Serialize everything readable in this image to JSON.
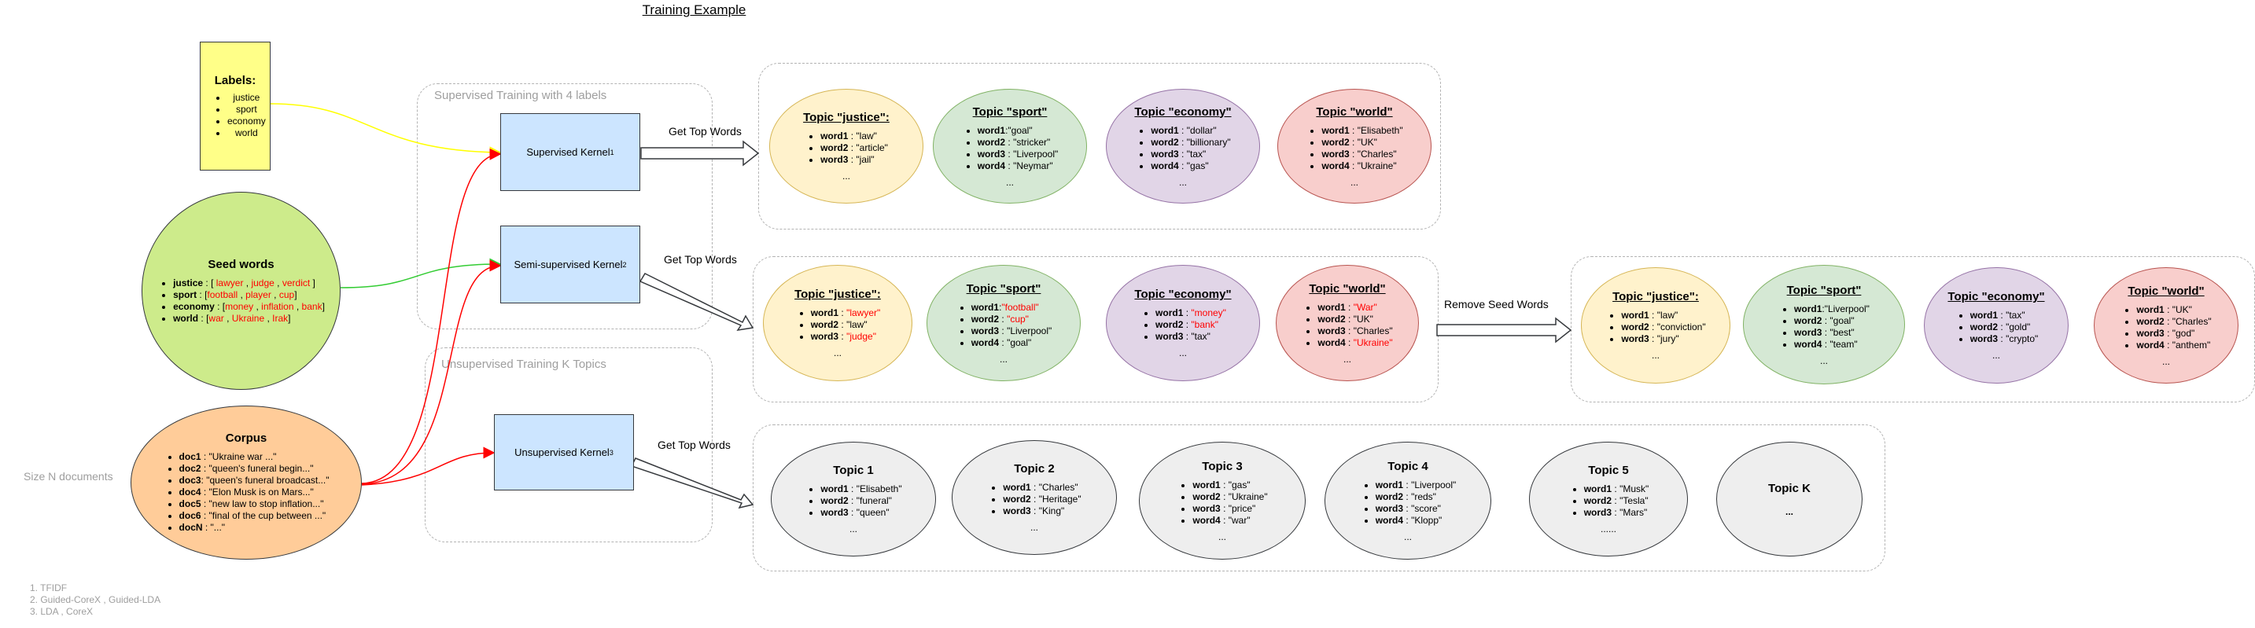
{
  "title": "Training Example",
  "labels_box": {
    "heading": "Labels:",
    "items": [
      "justice",
      "sport",
      "economy",
      "world"
    ]
  },
  "seed_words": {
    "heading": "Seed words",
    "rows": [
      {
        "key": "justice",
        "pre": " : [ ",
        "words": [
          "lawyer",
          "judge",
          "verdict"
        ],
        "post": " ]"
      },
      {
        "key": "sport",
        "pre": " : [",
        "words": [
          "football",
          "player",
          "cup"
        ],
        "post": "]"
      },
      {
        "key": "economy",
        "pre": " : [",
        "words": [
          "money",
          "inflation",
          "bank"
        ],
        "post": "]"
      },
      {
        "key": "world",
        "pre": " : [",
        "words": [
          "war",
          "Ukraine",
          "Irak"
        ],
        "post": "]"
      }
    ]
  },
  "corpus": {
    "heading": "Corpus",
    "rows": [
      {
        "key": "doc1",
        "text": " : \"Ukraine war ...\""
      },
      {
        "key": "doc2",
        "text": " : \"queen's funeral begin...\""
      },
      {
        "key": "doc3",
        "text": ": \"queen's funeral broadcast...\""
      },
      {
        "key": "doc4",
        "text": " : \"Elon Musk is on Mars...\""
      },
      {
        "key": "doc5",
        "text": " : \"new law to stop inflation...\""
      },
      {
        "key": "doc6",
        "text": " : \"final of the cup between ...\""
      },
      {
        "key": "docN",
        "text": " : \"...\""
      }
    ]
  },
  "size_label": "Size N documents",
  "groups": {
    "supervised": "Supervised Training with 4 labels",
    "unsupervised": "Unsupervised Training K Topics"
  },
  "kernels": {
    "supervised": {
      "label": "Supervised Kernel",
      "sup": "1"
    },
    "semi": {
      "label": "Semi-supervised Kernel ",
      "sup": "2"
    },
    "unsupervised": {
      "label": "Unsupervised Kernel ",
      "sup": "3"
    }
  },
  "edge_labels": {
    "top1": "Get Top Words",
    "top2": "Get Top Words",
    "top3": "Get Top Words",
    "remove": "Remove Seed Words"
  },
  "colors": {
    "yellow_fill": "#fff2cc",
    "green_fill": "#d5e8d4",
    "purple_fill": "#e1d5e7",
    "red_fill": "#f8cecc",
    "yellow_wire": "#ffff00",
    "green_wire": "#33cc33",
    "red_wire": "#ff0000"
  },
  "supervised_topics": [
    {
      "title": "Topic \"justice\":",
      "color": "yellow",
      "words": [
        {
          "k": "word1",
          "v": " : \"law\""
        },
        {
          "k": "word2",
          "v": " : \"article\""
        },
        {
          "k": "word3",
          "v": " : \"jail\""
        }
      ],
      "dots": "..."
    },
    {
      "title": "Topic \"sport\"",
      "color": "green",
      "words": [
        {
          "k": "word1",
          "v": ":\"goal\""
        },
        {
          "k": "word2",
          "v": " : \"stricker\""
        },
        {
          "k": "word3",
          "v": " : \"Liverpool\""
        },
        {
          "k": "word4",
          "v": " : \"Neymar\""
        }
      ],
      "dots": "..."
    },
    {
      "title": "Topic \"economy\"",
      "color": "purple",
      "words": [
        {
          "k": "word1",
          "v": " : \"dollar\""
        },
        {
          "k": "word2",
          "v": " : \"billionary\""
        },
        {
          "k": "word3",
          "v": " : \"tax\""
        },
        {
          "k": "word4",
          "v": " : \"gas\""
        }
      ],
      "dots": "..."
    },
    {
      "title": "Topic \"world\"",
      "color": "red",
      "words": [
        {
          "k": "word1",
          "v": " : \"Elisabeth\""
        },
        {
          "k": "word2",
          "v": " : \"UK\""
        },
        {
          "k": "word3",
          "v": " : \"Charles\""
        },
        {
          "k": "word4",
          "v": " : \"Ukraine\""
        }
      ],
      "dots": "..."
    }
  ],
  "semi_topics": [
    {
      "title": "Topic \"justice\":",
      "color": "yellow",
      "words": [
        {
          "k": "word1",
          "v": " : ",
          "r": "\"lawyer\""
        },
        {
          "k": "word2",
          "v": " : \"law\""
        },
        {
          "k": "word3",
          "v": " : ",
          "r": "\"judge\""
        }
      ],
      "dots": "..."
    },
    {
      "title": "Topic \"sport\"",
      "color": "green",
      "words": [
        {
          "k": "word1",
          "v": ":",
          "r": "\"football\""
        },
        {
          "k": "word2",
          "v": " : ",
          "r": "\"cup\""
        },
        {
          "k": "word3",
          "v": " : \"Liverpool\""
        },
        {
          "k": "word4",
          "v": " : \"goal\""
        }
      ],
      "dots": "..."
    },
    {
      "title": "Topic \"economy\"",
      "color": "purple",
      "words": [
        {
          "k": "word1",
          "v": " : ",
          "r": "\"money\""
        },
        {
          "k": "word2",
          "v": " : ",
          "r": "\"bank\""
        },
        {
          "k": "word3",
          "v": " : \"tax\""
        }
      ],
      "dots": "..."
    },
    {
      "title": "Topic \"world\"",
      "color": "red",
      "words": [
        {
          "k": "word1",
          "v": " : ",
          "r": "\"War\""
        },
        {
          "k": "word2",
          "v": " : \"UK\""
        },
        {
          "k": "word3",
          "v": " : \"Charles\""
        },
        {
          "k": "word4",
          "v": " : ",
          "r": "\"Ukraine\""
        }
      ],
      "dots": "..."
    }
  ],
  "final_topics": [
    {
      "title": "Topic \"justice\":",
      "color": "yellow",
      "words": [
        {
          "k": "word1",
          "v": " : \"law\""
        },
        {
          "k": "word2",
          "v": " : \"conviction\""
        },
        {
          "k": "word3",
          "v": " : \"jury\""
        }
      ],
      "dots": "..."
    },
    {
      "title": "Topic \"sport\"",
      "color": "green",
      "words": [
        {
          "k": "word1",
          "v": ":\"Liverpool\""
        },
        {
          "k": "word2",
          "v": " : \"goal\""
        },
        {
          "k": "word3",
          "v": " : \"best\""
        },
        {
          "k": "word4",
          "v": " : \"team\""
        }
      ],
      "dots": "..."
    },
    {
      "title": "Topic \"economy\"",
      "color": "purple",
      "words": [
        {
          "k": "word1",
          "v": " : \"tax\""
        },
        {
          "k": "word2",
          "v": " : \"gold\""
        },
        {
          "k": "word3",
          "v": " : \"crypto\""
        }
      ],
      "dots": "..."
    },
    {
      "title": "Topic \"world\"",
      "color": "red",
      "words": [
        {
          "k": "word1",
          "v": " : \"UK\""
        },
        {
          "k": "word2",
          "v": " : \"Charles\""
        },
        {
          "k": "word3",
          "v": " : \"god\""
        },
        {
          "k": "word4",
          "v": " : \"anthem\""
        }
      ],
      "dots": "..."
    }
  ],
  "unsup_topics": [
    {
      "title": "Topic 1",
      "words": [
        {
          "k": "word1",
          "v": " : \"Elisabeth\""
        },
        {
          "k": "word2",
          "v": " : \"funeral\""
        },
        {
          "k": "word3",
          "v": " : \"queen\""
        }
      ],
      "dots": "..."
    },
    {
      "title": "Topic 2",
      "words": [
        {
          "k": "word1",
          "v": " : \"Charles\""
        },
        {
          "k": "word2",
          "v": " : \"Heritage\""
        },
        {
          "k": "word3",
          "v": " : \"King\""
        }
      ],
      "dots": "..."
    },
    {
      "title": "Topic 3",
      "words": [
        {
          "k": "word1",
          "v": " : \"gas\""
        },
        {
          "k": "word2",
          "v": " : \"Ukraine\""
        },
        {
          "k": "word3",
          "v": " : \"price\""
        },
        {
          "k": "word4",
          "v": " : \"war\""
        }
      ],
      "dots": "..."
    },
    {
      "title": "Topic 4",
      "words": [
        {
          "k": "word1",
          "v": " : \"Liverpool\""
        },
        {
          "k": "word2",
          "v": " : \"reds\""
        },
        {
          "k": "word3",
          "v": " : \"score\""
        },
        {
          "k": "word4",
          "v": " : \"Klopp\""
        }
      ],
      "dots": "..."
    },
    {
      "title": "Topic 5",
      "words": [
        {
          "k": "word1",
          "v": " : \"Musk\""
        },
        {
          "k": "word2",
          "v": " : \"Tesla\""
        },
        {
          "k": "word3",
          "v": " : \"Mars\""
        }
      ],
      "dots": "......"
    },
    {
      "title": "Topic K",
      "words": [],
      "dots": "..."
    }
  ],
  "footnotes": [
    "1. TFIDF",
    "2. Guided-CoreX , Guided-LDA",
    "3. LDA , CoreX"
  ]
}
